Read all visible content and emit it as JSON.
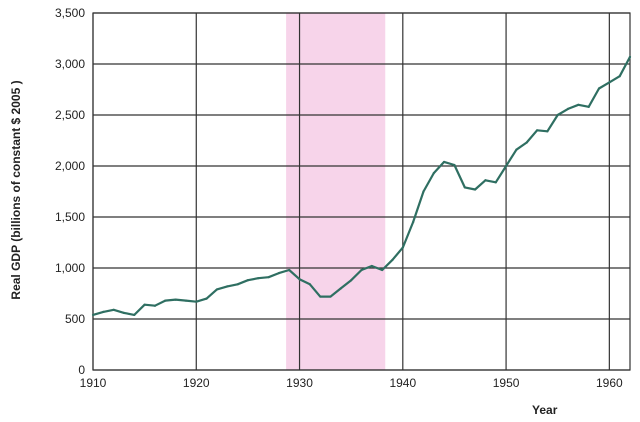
{
  "chart_data": {
    "type": "line",
    "title": "",
    "xlabel": "Year",
    "ylabel": "Real GDP (billions of constant $ 2005 )",
    "xlim": [
      1910,
      1962
    ],
    "ylim": [
      0,
      3500
    ],
    "x_ticks": [
      "1910",
      "1920",
      "1930",
      "1940",
      "1950",
      "1960"
    ],
    "x_tick_values": [
      1910,
      1920,
      1930,
      1940,
      1950,
      1960
    ],
    "y_ticks": [
      "0",
      "500",
      "1,000",
      "1,500",
      "2,000",
      "2,500",
      "3,000",
      "3,500"
    ],
    "y_tick_values": [
      0,
      500,
      1000,
      1500,
      2000,
      2500,
      3000,
      3500
    ],
    "grid": true,
    "legend": "none",
    "shaded_region": {
      "x_start": 1928.7,
      "x_end": 1938.3,
      "color": "#f7d4ea"
    },
    "series": [
      {
        "color": "#2f6f62",
        "x": [
          1910,
          1911,
          1912,
          1913,
          1914,
          1915,
          1916,
          1917,
          1918,
          1919,
          1920,
          1921,
          1922,
          1923,
          1924,
          1925,
          1926,
          1927,
          1928,
          1929,
          1930,
          1931,
          1932,
          1933,
          1934,
          1935,
          1936,
          1937,
          1938,
          1939,
          1940,
          1941,
          1942,
          1943,
          1944,
          1945,
          1946,
          1947,
          1948,
          1949,
          1950,
          1951,
          1952,
          1953,
          1954,
          1955,
          1956,
          1957,
          1958,
          1959,
          1960,
          1961,
          1962
        ],
        "y": [
          540,
          570,
          590,
          560,
          540,
          640,
          630,
          680,
          690,
          680,
          670,
          700,
          790,
          820,
          840,
          880,
          900,
          910,
          950,
          980,
          890,
          840,
          720,
          720,
          800,
          880,
          980,
          1020,
          980,
          1080,
          1200,
          1450,
          1750,
          1930,
          2040,
          2010,
          1790,
          1770,
          1860,
          1840,
          2000,
          2160,
          2230,
          2350,
          2340,
          2500,
          2560,
          2600,
          2580,
          2760,
          2820,
          2880,
          3070
        ]
      }
    ]
  }
}
